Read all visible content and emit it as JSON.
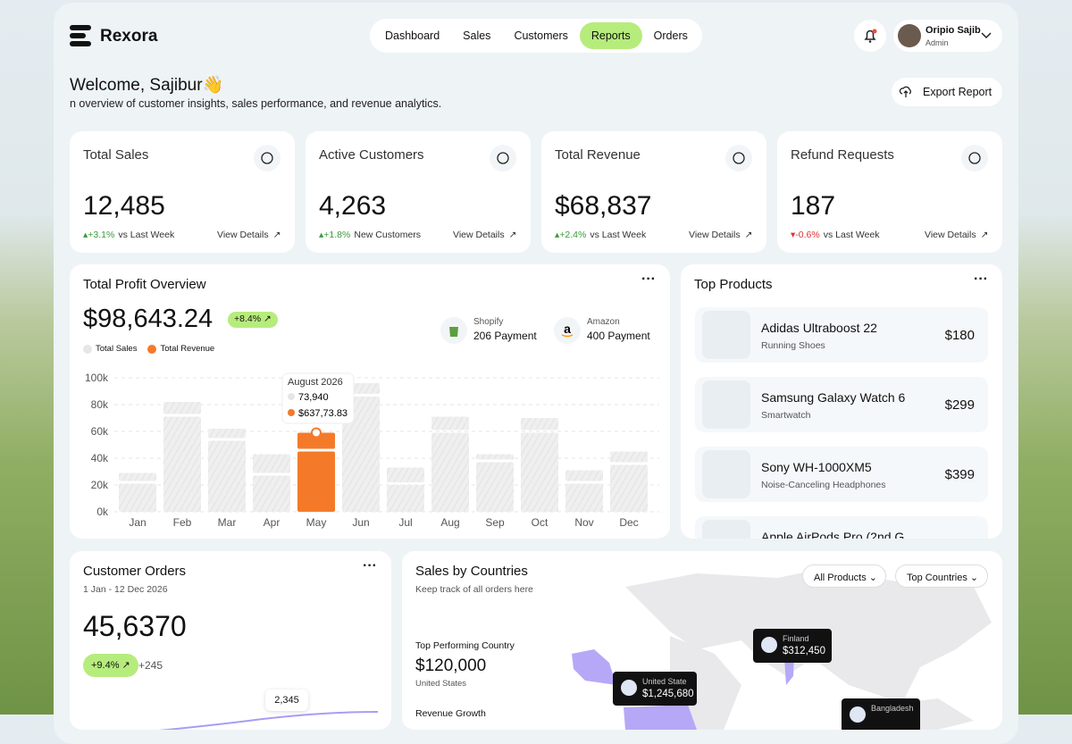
{
  "header": {
    "brand": "Rexora",
    "nav": [
      {
        "label": "Dashboard"
      },
      {
        "label": "Sales"
      },
      {
        "label": "Customers"
      },
      {
        "label": "Reports",
        "active": true
      },
      {
        "label": "Orders"
      }
    ],
    "user": {
      "name": "Oripio Sajib",
      "role": "Admin"
    }
  },
  "welcome": {
    "title": "Welcome, Sajibur👋",
    "subtitle": "n overview of customer insights, sales performance, and revenue analytics.",
    "button": "Export Report"
  },
  "stats": [
    {
      "label": "Total Sales",
      "value": "12,485",
      "change": "+3.1%",
      "note": "vs Last Week",
      "link": "View Details",
      "trend": "up"
    },
    {
      "label": "Active Customers",
      "value": "4,263",
      "change": "+1.8%",
      "note": "New Customers",
      "link": "View Details",
      "trend": "up"
    },
    {
      "label": "Total Revenue",
      "value": "$68,837",
      "change": "+2.4%",
      "note": "vs Last Week",
      "link": "View Details",
      "trend": "up"
    },
    {
      "label": "Refund Requests",
      "value": "187",
      "change": "-0.6%",
      "note": "vs Last Week",
      "link": "View Details",
      "trend": "down"
    }
  ],
  "profit": {
    "title": "Total Profit Overview",
    "amount": "$98,643.24",
    "badge": "+8.4%",
    "payments": [
      {
        "name": "Shopify",
        "detail": "206 Payment"
      },
      {
        "name": "Amazon",
        "detail": "400 Payment"
      }
    ],
    "tooltip": {
      "title": "August 2026",
      "sales": "73,940",
      "revenue": "$637,73.83"
    }
  },
  "chart_data": {
    "type": "bar",
    "stacked": true,
    "categories": [
      "Jan",
      "Feb",
      "Mar",
      "Apr",
      "May",
      "Jun",
      "Jul",
      "Aug",
      "Sep",
      "Oct",
      "Nov",
      "Dec"
    ],
    "series": [
      {
        "name": "Total Sales",
        "color": "#e6e6e6",
        "values": [
          21,
          71,
          53,
          27,
          45,
          86,
          20,
          59,
          37,
          59,
          21,
          35
        ]
      },
      {
        "name": "Total Revenue",
        "color": "#f47a2a",
        "values": [
          8,
          11,
          9,
          16,
          14,
          10,
          13,
          12,
          6,
          11,
          10,
          10
        ]
      }
    ],
    "bar_color": "#ececec",
    "highlight_index": 4,
    "highlight_color": "#f47a2a",
    "ylim": [
      0,
      100
    ],
    "yticks": [
      {
        "value": 0,
        "label": "0k"
      },
      {
        "value": 20,
        "label": "20k"
      },
      {
        "value": 40,
        "label": "40k"
      },
      {
        "value": 60,
        "label": "60k"
      },
      {
        "value": 80,
        "label": "80k"
      },
      {
        "value": 100,
        "label": "100k"
      }
    ],
    "grid": true
  },
  "products": {
    "title": "Top Products",
    "items": [
      {
        "name": "Adidas Ultraboost 22",
        "category": "Running Shoes",
        "price": "$180"
      },
      {
        "name": "Samsung Galaxy Watch 6",
        "category": "Smartwatch",
        "price": "$299"
      },
      {
        "name": "Sony WH-1000XM5",
        "category": "Noise-Canceling Headphones",
        "price": "$399"
      },
      {
        "name": "Apple AirPods Pro (2nd G",
        "category": "",
        "price": ""
      }
    ]
  },
  "orders": {
    "title": "Customer Orders",
    "range": "1 Jan - 12 Dec 2026",
    "value": "45,6370",
    "badge": "+9.4%",
    "delta": "+245",
    "point_label": "2,345"
  },
  "countries": {
    "title": "Sales by Countries",
    "subtitle": "Keep track of all orders here",
    "filters": [
      "All Products",
      "Top Countries"
    ],
    "top_label": "Top Performing Country",
    "top_value": "$120,000",
    "top_country": "United States",
    "growth_label": "Revenue Growth",
    "pins": [
      {
        "country": "Finland",
        "value": "$312,450"
      },
      {
        "country": "United State",
        "value": "$1,245,680"
      },
      {
        "country": "Bangladesh",
        "value": ""
      }
    ]
  }
}
